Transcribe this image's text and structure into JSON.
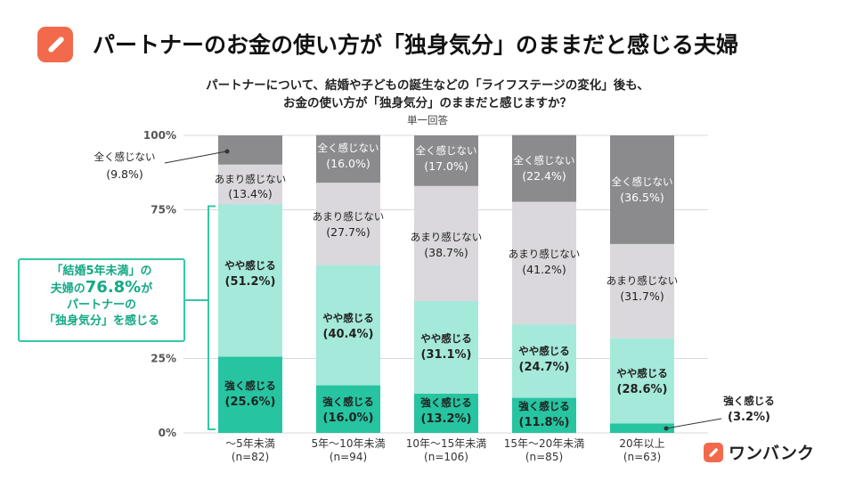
{
  "header": {
    "title": "パートナーのお金の使い方が「独身気分」のままだと感じる夫婦",
    "logo_icon": "pencil-icon"
  },
  "subtitle": {
    "line1": "パートナーについて、結婚や子どもの誕生などの「ライフステージの変化」後も、",
    "line2": "お金の使い方が「独身気分」のままだと感じますか？",
    "note": "単一回答"
  },
  "callout": {
    "line1": "「結婚5年未満」の",
    "line2_prefix": "夫婦の",
    "line2_value": "76.8%",
    "line2_suffix": "が",
    "line3": "パートナーの",
    "line4": "「独身気分」を感じる"
  },
  "brand": {
    "name": "ワンバンク",
    "logo_icon": "pencil-icon"
  },
  "chart_data": {
    "type": "bar",
    "stacked": true,
    "categories": [
      "〜5年未満",
      "5年〜10年未満",
      "10年〜15年未満",
      "15年〜20年未満",
      "20年以上"
    ],
    "sample_sizes": [
      "(n=82)",
      "(n=94)",
      "(n=106)",
      "(n=85)",
      "(n=63)"
    ],
    "yticks": [
      "0%",
      "25%",
      "75%",
      "100%"
    ],
    "ytick_values": [
      0,
      25,
      75,
      100
    ],
    "ylim": [
      0,
      100
    ],
    "series": [
      {
        "name": "強く感じる",
        "values": [
          25.6,
          16.0,
          13.2,
          11.8,
          3.2
        ],
        "labels": [
          "(25.6%)",
          "(16.0%)",
          "(13.2%)",
          "(11.8%)",
          "(3.2%)"
        ],
        "color": "#26c4a1"
      },
      {
        "name": "やや感じる",
        "values": [
          51.2,
          40.4,
          31.1,
          24.7,
          28.6
        ],
        "labels": [
          "(51.2%)",
          "(40.4%)",
          "(31.1%)",
          "(24.7%)",
          "(28.6%)"
        ],
        "color": "#a5e9da"
      },
      {
        "name": "あまり感じない",
        "values": [
          13.4,
          27.7,
          38.7,
          41.2,
          31.7
        ],
        "labels": [
          "(13.4%)",
          "(27.7%)",
          "(38.7%)",
          "(41.2%)",
          "(31.7%)"
        ],
        "color": "#dad8dc"
      },
      {
        "name": "全く感じない",
        "values": [
          9.8,
          16.0,
          17.0,
          22.4,
          36.5
        ],
        "labels": [
          "(9.8%)",
          "(16.0%)",
          "(17.0%)",
          "(22.4%)",
          "(36.5%)"
        ],
        "color": "#8b8a8d"
      }
    ],
    "grid": true
  }
}
